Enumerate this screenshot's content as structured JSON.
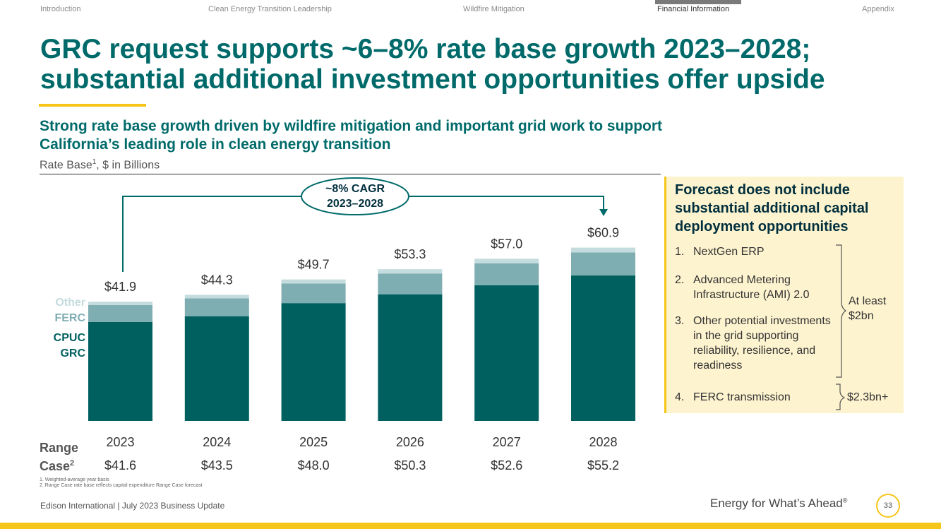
{
  "nav": {
    "items": [
      "Introduction",
      "Clean Energy Transition Leadership",
      "Wildfire Mitigation",
      "Financial Information",
      "Appendix"
    ],
    "active": "Financial Information"
  },
  "title": "GRC request supports ~6–8% rate base growth 2023–2028; substantial additional investment opportunities offer upside",
  "subtitle": "Strong rate base growth driven by wildfire mitigation and important grid work to support California’s leading role in clean energy transition",
  "units": "Rate Base",
  "units_sup": "1",
  "units_rest": ", $ in Billions",
  "chart_data": {
    "type": "bar",
    "stacked": true,
    "categories": [
      "2023",
      "2024",
      "2025",
      "2026",
      "2027",
      "2028"
    ],
    "totals": [
      "$41.9",
      "$44.3",
      "$49.7",
      "$53.3",
      "$57.0",
      "$60.9"
    ],
    "total_values": [
      41.9,
      44.3,
      49.7,
      53.3,
      57.0,
      60.9
    ],
    "series": [
      {
        "name": "CPUC GRC",
        "values": [
          34.8,
          36.8,
          41.4,
          44.5,
          47.7,
          51.1
        ],
        "color": "#00605f"
      },
      {
        "name": "FERC",
        "values": [
          5.9,
          6.3,
          6.9,
          7.3,
          7.7,
          8.1
        ],
        "color": "#7faeb2"
      },
      {
        "name": "Other",
        "values": [
          1.2,
          1.2,
          1.4,
          1.5,
          1.6,
          1.7
        ],
        "color": "#c4dcdd"
      }
    ],
    "legend": {
      "other": "Other",
      "ferc": "FERC",
      "cpuc": "CPUC",
      "grc": "GRC"
    },
    "cagr_line1": "~8% CAGR",
    "cagr_line2": "2023–2028",
    "range_case": [
      "$41.6",
      "$43.5",
      "$48.0",
      "$50.3",
      "$52.6",
      "$55.2"
    ]
  },
  "range_label_line1": "Range",
  "range_label_line2": "Case",
  "range_label_sup": "2",
  "footnotes": [
    "1.  Weighted-average year basis",
    "2.  Range Case rate base reflects capital expenditure Range Case forecast"
  ],
  "panel": {
    "title": "Forecast does not include substantial additional capital deployment opportunities",
    "items": [
      {
        "num": "1.",
        "text": "NextGen ERP"
      },
      {
        "num": "2.",
        "text": "Advanced Metering Infrastructure (AMI) 2.0"
      },
      {
        "num": "3.",
        "text": "Other potential investments in the grid supporting reliability, resilience, and readiness"
      },
      {
        "num": "4.",
        "text": "FERC transmission"
      }
    ],
    "brace1": "At least $2bn",
    "brace2": "$2.3bn+"
  },
  "footer": {
    "left": "Edison International |  July 2023 Business Update",
    "tagline": "Energy for What’s Ahead",
    "tagline_mark": "®",
    "page": "33"
  },
  "colors": {
    "accent_teal": "#006a6a",
    "yellow": "#f5c518",
    "panel_bg": "#fdf3cf"
  }
}
